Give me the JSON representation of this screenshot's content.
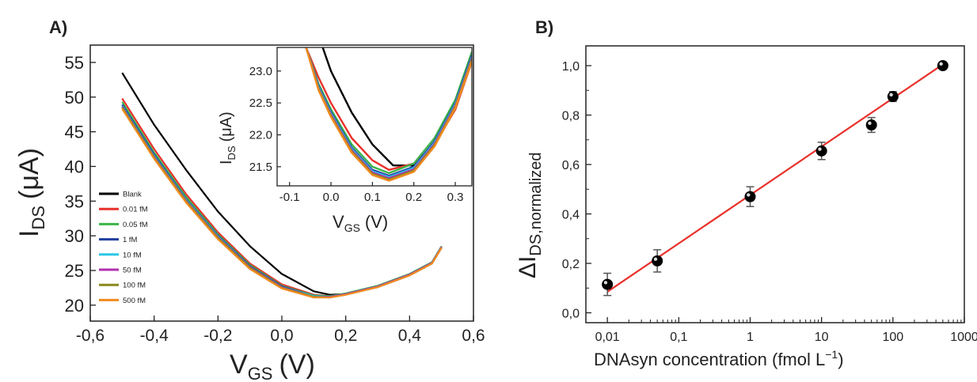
{
  "chart_data": [
    {
      "type": "line",
      "panel_label": "A)",
      "xlabel": "V",
      "xlabel_sub": "GS",
      "xlabel_unit": "(V)",
      "ylabel": "I",
      "ylabel_sub": "DS",
      "ylabel_unit": "(μA)",
      "xlim": [
        -0.6,
        0.6
      ],
      "ylim": [
        17.7,
        57.5
      ],
      "x_ticks": [
        -0.6,
        -0.4,
        -0.2,
        0.0,
        0.2,
        0.4,
        0.6
      ],
      "x_tick_labels": [
        "-0,6",
        "-0,4",
        "-0,2",
        "0,0",
        "0,2",
        "0,4",
        "0,6"
      ],
      "y_ticks": [
        20,
        25,
        30,
        35,
        40,
        45,
        50,
        55
      ],
      "y_tick_labels": [
        "20",
        "25",
        "30",
        "35",
        "40",
        "45",
        "50",
        "55"
      ],
      "legend_position": "left",
      "series": [
        {
          "name": "Blank",
          "color": "#000000",
          "x": [
            -0.5,
            -0.4,
            -0.3,
            -0.2,
            -0.1,
            0.0,
            0.1,
            0.15,
            0.2,
            0.3,
            0.4,
            0.47,
            0.5
          ],
          "y": [
            53.5,
            46.0,
            39.5,
            33.5,
            28.5,
            24.5,
            22.0,
            21.5,
            21.6,
            22.6,
            24.3,
            26.0,
            28.3
          ]
        },
        {
          "name": "0.01 fM",
          "color": "#e8302a",
          "x": [
            -0.5,
            -0.4,
            -0.3,
            -0.2,
            -0.1,
            0.0,
            0.1,
            0.15,
            0.2,
            0.3,
            0.4,
            0.47,
            0.5
          ],
          "y": [
            49.8,
            42.5,
            36.0,
            30.5,
            26.0,
            23.0,
            21.5,
            21.3,
            21.6,
            22.6,
            24.3,
            26.0,
            28.3
          ]
        },
        {
          "name": "0.05 fM",
          "color": "#3cb44a",
          "x": [
            -0.5,
            -0.4,
            -0.3,
            -0.2,
            -0.1,
            0.0,
            0.1,
            0.15,
            0.2,
            0.3,
            0.4,
            0.47,
            0.5
          ],
          "y": [
            49.3,
            42.0,
            35.6,
            30.2,
            25.8,
            22.8,
            21.4,
            21.3,
            21.7,
            22.8,
            24.5,
            26.2,
            28.5
          ]
        },
        {
          "name": "1 fM",
          "color": "#1f3f9f",
          "x": [
            -0.5,
            -0.4,
            -0.3,
            -0.2,
            -0.1,
            0.0,
            0.1,
            0.15,
            0.2,
            0.3,
            0.4,
            0.47,
            0.5
          ],
          "y": [
            48.9,
            41.7,
            35.3,
            30.0,
            25.6,
            22.7,
            21.3,
            21.2,
            21.6,
            22.7,
            24.4,
            26.1,
            28.4
          ]
        },
        {
          "name": "10 fM",
          "color": "#2cc7e6",
          "x": [
            -0.5,
            -0.4,
            -0.3,
            -0.2,
            -0.1,
            0.0,
            0.1,
            0.15,
            0.2,
            0.3,
            0.4,
            0.47,
            0.5
          ],
          "y": [
            48.7,
            41.5,
            35.2,
            29.9,
            25.5,
            22.6,
            21.3,
            21.2,
            21.6,
            22.7,
            24.4,
            26.1,
            28.4
          ]
        },
        {
          "name": "50 fM",
          "color": "#b030b0",
          "x": [
            -0.5,
            -0.4,
            -0.3,
            -0.2,
            -0.1,
            0.0,
            0.1,
            0.15,
            0.2,
            0.3,
            0.4,
            0.47,
            0.5
          ],
          "y": [
            48.6,
            41.4,
            35.1,
            29.8,
            25.5,
            22.6,
            21.2,
            21.2,
            21.6,
            22.7,
            24.4,
            26.1,
            28.4
          ]
        },
        {
          "name": "100 fM",
          "color": "#8a8a1e",
          "x": [
            -0.5,
            -0.4,
            -0.3,
            -0.2,
            -0.1,
            0.0,
            0.1,
            0.15,
            0.2,
            0.3,
            0.4,
            0.47,
            0.5
          ],
          "y": [
            48.5,
            41.3,
            35.0,
            29.7,
            25.4,
            22.5,
            21.2,
            21.1,
            21.5,
            22.6,
            24.3,
            26.0,
            28.3
          ]
        },
        {
          "name": "500 fM",
          "color": "#f28a1e",
          "x": [
            -0.5,
            -0.4,
            -0.3,
            -0.2,
            -0.1,
            0.0,
            0.1,
            0.15,
            0.2,
            0.3,
            0.4,
            0.47,
            0.5
          ],
          "y": [
            48.3,
            41.1,
            34.8,
            29.5,
            25.2,
            22.4,
            21.1,
            21.1,
            21.5,
            22.6,
            24.3,
            26.0,
            28.3
          ]
        }
      ],
      "inset": {
        "xlabel": "V",
        "xlabel_sub": "GS",
        "xlabel_unit": "(V)",
        "ylabel": "I",
        "ylabel_sub": "DS",
        "ylabel_unit": "(μA)",
        "xlim": [
          -0.13,
          0.34
        ],
        "ylim": [
          21.2,
          23.37
        ],
        "x_ticks": [
          -0.1,
          0.0,
          0.1,
          0.2,
          0.3
        ],
        "x_tick_labels": [
          "-0.1",
          "0.0",
          "0.1",
          "0.2",
          "0.3"
        ],
        "y_ticks": [
          21.5,
          22.0,
          22.5,
          23.0
        ],
        "y_tick_labels": [
          "21.5",
          "22.0",
          "22.5",
          "23.0"
        ],
        "series": [
          {
            "name": "Blank",
            "color": "#000000",
            "x": [
              -0.02,
              0.0,
              0.05,
              0.1,
              0.15,
              0.2,
              0.25,
              0.3,
              0.34
            ],
            "y": [
              23.37,
              23.0,
              22.35,
              21.85,
              21.52,
              21.52,
              21.85,
              22.4,
              23.15
            ]
          },
          {
            "name": "0.01 fM",
            "color": "#e8302a",
            "x": [
              -0.06,
              -0.03,
              0.0,
              0.05,
              0.1,
              0.14,
              0.2,
              0.25,
              0.3,
              0.34
            ],
            "y": [
              23.37,
              22.9,
              22.5,
              21.95,
              21.6,
              21.45,
              21.55,
              21.85,
              22.4,
              23.15
            ]
          },
          {
            "name": "0.05 fM",
            "color": "#3cb44a",
            "x": [
              -0.06,
              -0.03,
              0.0,
              0.05,
              0.1,
              0.14,
              0.2,
              0.25,
              0.3,
              0.34
            ],
            "y": [
              23.37,
              22.8,
              22.4,
              21.85,
              21.5,
              21.4,
              21.55,
              21.95,
              22.55,
              23.3
            ]
          },
          {
            "name": "1 fM",
            "color": "#1f3f9f",
            "x": [
              -0.06,
              -0.03,
              0.0,
              0.05,
              0.1,
              0.14,
              0.2,
              0.25,
              0.3,
              0.34
            ],
            "y": [
              23.37,
              22.77,
              22.36,
              21.8,
              21.45,
              21.36,
              21.5,
              21.9,
              22.5,
              23.25
            ]
          },
          {
            "name": "10 fM",
            "color": "#2cc7e6",
            "x": [
              -0.06,
              -0.03,
              0.0,
              0.05,
              0.1,
              0.14,
              0.2,
              0.25,
              0.3,
              0.34
            ],
            "y": [
              23.37,
              22.75,
              22.34,
              21.78,
              21.43,
              21.34,
              21.48,
              21.88,
              22.48,
              23.22
            ]
          },
          {
            "name": "50 fM",
            "color": "#b030b0",
            "x": [
              -0.06,
              -0.03,
              0.0,
              0.05,
              0.1,
              0.14,
              0.2,
              0.25,
              0.3,
              0.34
            ],
            "y": [
              23.37,
              22.73,
              22.32,
              21.76,
              21.41,
              21.32,
              21.46,
              21.86,
              22.46,
              23.2
            ]
          },
          {
            "name": "100 fM",
            "color": "#8a8a1e",
            "x": [
              -0.06,
              -0.03,
              0.0,
              0.05,
              0.1,
              0.14,
              0.2,
              0.25,
              0.3,
              0.34
            ],
            "y": [
              23.37,
              22.72,
              22.3,
              21.74,
              21.39,
              21.3,
              21.44,
              21.84,
              22.44,
              23.18
            ]
          },
          {
            "name": "500 fM",
            "color": "#f28a1e",
            "x": [
              -0.06,
              -0.03,
              0.0,
              0.05,
              0.1,
              0.14,
              0.2,
              0.25,
              0.3,
              0.34
            ],
            "y": [
              23.37,
              22.7,
              22.28,
              21.72,
              21.37,
              21.28,
              21.42,
              21.82,
              22.42,
              23.15
            ]
          }
        ]
      }
    },
    {
      "type": "scatter",
      "panel_label": "B)",
      "xlabel": "DNAsyn concentration (fmol L",
      "xlabel_sup": "−1",
      "xlabel_end": ")",
      "ylabel": "ΔI",
      "ylabel_sub": "DS,normalized",
      "x_scale": "log",
      "xlim": [
        0.005,
        1000
      ],
      "ylim": [
        -0.04,
        1.08
      ],
      "x_ticks": [
        0.01,
        0.1,
        1,
        10,
        100,
        1000
      ],
      "x_tick_labels": [
        "0,01",
        "0,1",
        "1",
        "10",
        "100",
        "1000"
      ],
      "y_ticks": [
        0.0,
        0.2,
        0.4,
        0.6,
        0.8,
        1.0
      ],
      "y_tick_labels": [
        "0,0",
        "0,2",
        "0,4",
        "0,6",
        "0,8",
        "1,0"
      ],
      "points": {
        "x": [
          0.01,
          0.05,
          1,
          10,
          50,
          100,
          500
        ],
        "y": [
          0.115,
          0.21,
          0.47,
          0.655,
          0.76,
          0.875,
          1.0
        ],
        "error": [
          0.045,
          0.045,
          0.04,
          0.035,
          0.03,
          0.02,
          0.01
        ]
      },
      "fit": {
        "x": [
          0.01,
          500
        ],
        "y": [
          0.085,
          1.005
        ],
        "color": "#e8302a"
      },
      "point_color": "#000000"
    }
  ]
}
